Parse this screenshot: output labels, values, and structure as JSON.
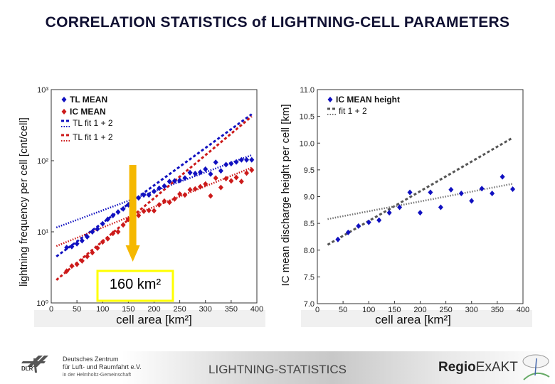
{
  "title": "CORRELATION STATISTICS of LIGHTNING-CELL PARAMETERS",
  "footer": {
    "center_title": "LIGHTNING-STATISTICS",
    "org_line1": "Deutsches Zentrum",
    "org_line2": "für Luft- und Raumfahrt e.V.",
    "org_line3": "in der Helmholtz-Gemeinschaft",
    "org_abbr": "DLR",
    "project_logo_bold": "Regio",
    "project_logo_rest": "ExAKT"
  },
  "annotation": {
    "label": "160 km²",
    "arrow_x": 160,
    "arrow_color": "#f5b800",
    "box_color": "#ffff00"
  },
  "chart_data": [
    {
      "type": "scatter",
      "xlabel": "cell area [km²]",
      "ylabel": "lightning frequency per cell [cnt/cell]",
      "xlim": [
        0,
        400
      ],
      "ylim": [
        1,
        1000
      ],
      "yscale": "log",
      "xticks": [
        "0",
        "50",
        "100",
        "150",
        "200",
        "250",
        "300",
        "350",
        "400"
      ],
      "yticks": [
        "10⁰",
        "10¹",
        "10²",
        "10³"
      ],
      "legend_placement": "top-left",
      "series": [
        {
          "name": "TL MEAN",
          "color": "#1010c0",
          "marker": "diamond",
          "x": [
            30,
            40,
            50,
            60,
            70,
            80,
            90,
            100,
            110,
            120,
            130,
            140,
            150,
            160,
            170,
            180,
            190,
            200,
            210,
            220,
            230,
            240,
            250,
            260,
            270,
            280,
            290,
            300,
            310,
            320,
            330,
            340,
            350,
            360,
            370,
            380,
            390
          ],
          "y": [
            6,
            6.2,
            6.8,
            7.5,
            8.5,
            10,
            11,
            13,
            15,
            17,
            19,
            21,
            24,
            27,
            30,
            33,
            33,
            37,
            41,
            44,
            51,
            52,
            53,
            57,
            68,
            66,
            69,
            76,
            65,
            95,
            72,
            88,
            91,
            96,
            103,
            103,
            103
          ]
        },
        {
          "name": "IC MEAN",
          "color": "#cc1a1a",
          "marker": "diamond",
          "x": [
            30,
            40,
            50,
            60,
            70,
            80,
            90,
            100,
            110,
            120,
            130,
            140,
            150,
            160,
            170,
            180,
            190,
            200,
            210,
            220,
            230,
            240,
            250,
            260,
            270,
            280,
            290,
            300,
            310,
            320,
            330,
            340,
            350,
            360,
            370,
            380,
            390
          ],
          "y": [
            2.8,
            3.3,
            3.5,
            3.9,
            4.5,
            5.1,
            5.9,
            7.2,
            8,
            9.5,
            10,
            12.5,
            15,
            15,
            17,
            19.5,
            20,
            19.8,
            24,
            27,
            26,
            29,
            34,
            33,
            39,
            40,
            43,
            47,
            32,
            57,
            42,
            56,
            52,
            58,
            51,
            67,
            74
          ]
        }
      ],
      "fits": [
        {
          "name": "TL fit 1 + 2",
          "color": "#1010c0",
          "style": "dashed",
          "x": [
            10,
            390
          ],
          "y": [
            4.5,
            450
          ]
        },
        {
          "name": "",
          "color": "#1010c0",
          "style": "dotted",
          "x": [
            10,
            390
          ],
          "y": [
            11.5,
            120
          ]
        },
        {
          "name": "TL fit 1 + 2",
          "color": "#cc1a1a",
          "style": "dashed",
          "x": [
            10,
            390
          ],
          "y": [
            2.1,
            420
          ]
        },
        {
          "name": "",
          "color": "#cc1a1a",
          "style": "dotted",
          "x": [
            10,
            390
          ],
          "y": [
            6.3,
            80
          ]
        }
      ]
    },
    {
      "type": "scatter",
      "xlabel": "cell area [km²]",
      "ylabel": "IC mean discharge height per cell [km]",
      "xlim": [
        0,
        400
      ],
      "ylim": [
        7.0,
        11.0
      ],
      "yscale": "linear",
      "xticks": [
        "0",
        "50",
        "100",
        "150",
        "200",
        "250",
        "300",
        "350",
        "400"
      ],
      "yticks": [
        "7.0",
        "7.5",
        "8.0",
        "8.5",
        "9.0",
        "9.5",
        "10.0",
        "10.5",
        "11.0"
      ],
      "legend_placement": "top-left",
      "series": [
        {
          "name": "IC MEAN height",
          "color": "#1010c0",
          "marker": "diamond",
          "x": [
            40,
            60,
            80,
            100,
            120,
            140,
            160,
            180,
            200,
            220,
            240,
            260,
            280,
            300,
            320,
            340,
            360,
            380
          ],
          "y": [
            8.2,
            8.33,
            8.45,
            8.52,
            8.56,
            8.7,
            8.8,
            9.08,
            8.7,
            9.08,
            8.8,
            9.13,
            9.06,
            8.92,
            9.15,
            9.06,
            9.37,
            9.14
          ]
        }
      ],
      "fits": [
        {
          "name": "fit 1 + 2",
          "color": "#555555",
          "style": "dashed",
          "x": [
            20,
            380
          ],
          "y": [
            8.1,
            10.1
          ]
        },
        {
          "name": "",
          "color": "#777777",
          "style": "dotted",
          "x": [
            20,
            380
          ],
          "y": [
            8.58,
            9.24
          ]
        }
      ]
    }
  ]
}
